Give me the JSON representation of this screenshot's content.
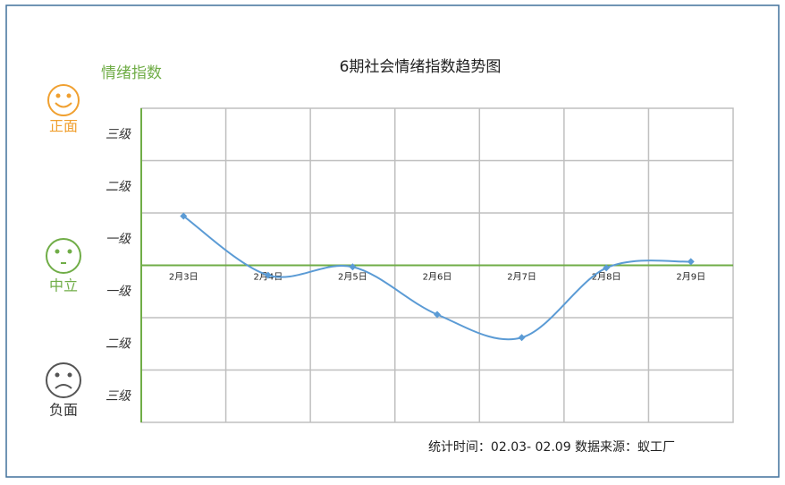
{
  "chart_data": {
    "type": "line",
    "title": "6期社会情绪指数趋势图",
    "ylabel": "情绪指数",
    "annotations": {
      "positive": "正面",
      "neutral": "中立",
      "negative": "负面"
    },
    "footnote": "统计时间：02.03- 02.09 数据来源：蚁工厂",
    "categories": [
      "2月3日",
      "2月4日",
      "2月5日",
      "2月6日",
      "2月7日",
      "2月8日",
      "2月9日"
    ],
    "values": [
      0.94,
      -0.19,
      -0.03,
      -0.94,
      -1.38,
      -0.05,
      0.07
    ],
    "color": "#5b9bd5",
    "smooth": true,
    "ylim": [
      -3,
      3
    ],
    "yticks": [
      {
        "value": 2.5,
        "label": "三级"
      },
      {
        "value": 1.5,
        "label": "二级"
      },
      {
        "value": 0.5,
        "label": "一级"
      },
      {
        "value": -0.5,
        "label": "一级"
      },
      {
        "value": -1.5,
        "label": "二级"
      },
      {
        "value": -2.5,
        "label": "三级"
      }
    ],
    "grid": true
  }
}
